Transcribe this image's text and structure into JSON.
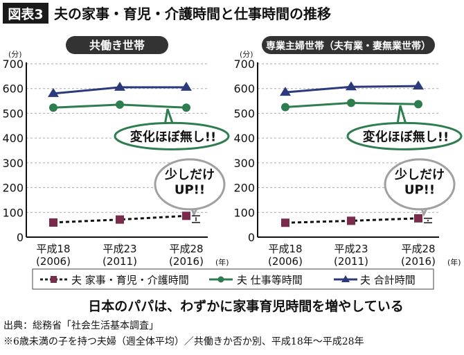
{
  "header": {
    "badge": "図表3",
    "title": "夫の家事・育児・介護時間と仕事時間の推移"
  },
  "unit_label": "(分)",
  "year_unit": "(年)",
  "colors": {
    "housework": "#7a2a4a",
    "work": "#2e7d4f",
    "total": "#2b3a7c",
    "pill": "#333333",
    "callout_gray": "#a0a0a0"
  },
  "chart_data": [
    {
      "type": "line",
      "title": "共働き世帯",
      "categories": [
        {
          "era": "平成18",
          "year": "(2006)"
        },
        {
          "era": "平成23",
          "year": "(2011)"
        },
        {
          "era": "平成28",
          "year": "(2016)"
        }
      ],
      "ylim": [
        0,
        700
      ],
      "yticks": [
        0,
        100,
        200,
        300,
        400,
        500,
        600,
        700
      ],
      "grid": true,
      "series": [
        {
          "key": "housework",
          "name": "夫 家事・育児・介護時間",
          "marker": "square",
          "dashed": true,
          "values": [
            59,
            71,
            86
          ]
        },
        {
          "key": "work",
          "name": "夫 仕事等時間",
          "marker": "circle",
          "dashed": false,
          "values": [
            523,
            535,
            523
          ]
        },
        {
          "key": "total",
          "name": "夫 合計時間",
          "marker": "triangle",
          "dashed": false,
          "values": [
            580,
            605,
            605
          ]
        }
      ],
      "annotations": {
        "flat": "変化ほぼ無し!!",
        "up_line1": "少しだけ",
        "up_line2": "UP!!"
      }
    },
    {
      "type": "line",
      "title": "専業主婦世帯（夫有業・妻無業世帯）",
      "categories": [
        {
          "era": "平成18",
          "year": "(2006)"
        },
        {
          "era": "平成23",
          "year": "(2011)"
        },
        {
          "era": "平成28",
          "year": "(2016)"
        }
      ],
      "ylim": [
        0,
        700
      ],
      "yticks": [
        0,
        100,
        200,
        300,
        400,
        500,
        600,
        700
      ],
      "grid": true,
      "series": [
        {
          "key": "housework",
          "name": "夫 家事・育児・介護時間",
          "marker": "square",
          "dashed": true,
          "values": [
            58,
            66,
            76
          ]
        },
        {
          "key": "work",
          "name": "夫 仕事等時間",
          "marker": "circle",
          "dashed": false,
          "values": [
            525,
            542,
            537
          ]
        },
        {
          "key": "total",
          "name": "夫 合計時間",
          "marker": "triangle",
          "dashed": false,
          "values": [
            585,
            607,
            610
          ]
        }
      ],
      "annotations": {
        "flat": "変化ほぼ無し!!",
        "up_line1": "少しだけ",
        "up_line2": "UP!!"
      }
    }
  ],
  "legend": [
    "夫 家事・育児・介護時間",
    "夫 仕事等時間",
    "夫 合計時間"
  ],
  "subtitle": "日本のパパは、わずかに家事育児時間を増やしている",
  "source": "出典：総務省「社会生活基本調査」",
  "note": "※6歳未満の子を持つ夫婦（週全体平均）／共働きか否か別、平成18年～平成28年"
}
